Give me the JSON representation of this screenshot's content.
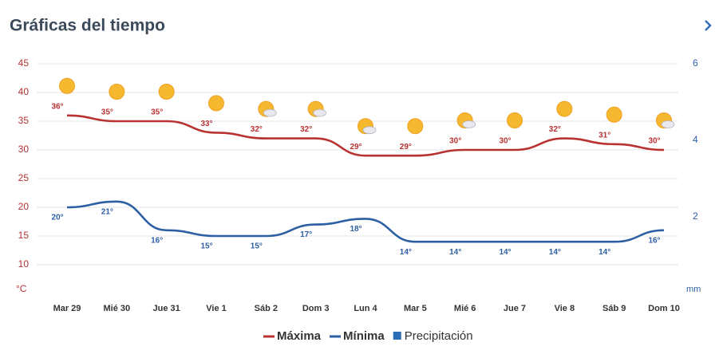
{
  "chart_data": {
    "type": "line",
    "title": "Gráficas del tiempo",
    "categories": [
      "Mar 29",
      "Mié 30",
      "Jue 31",
      "Vie 1",
      "Sáb 2",
      "Dom 3",
      "Lun 4",
      "Mar 5",
      "Mié 6",
      "Jue 7",
      "Vie 8",
      "Sáb 9",
      "Dom 10"
    ],
    "series": [
      {
        "name": "Máxima",
        "color": "#b83232",
        "values": [
          36,
          35,
          35,
          33,
          32,
          32,
          29,
          29,
          30,
          30,
          32,
          31,
          30
        ],
        "value_labels": [
          "36°",
          "35°",
          "35°",
          "33°",
          "32°",
          "32°",
          "29°",
          "29°",
          "30°",
          "30°",
          "32°",
          "31°",
          "30°"
        ]
      },
      {
        "name": "Mínima",
        "color": "#2d5fa4",
        "values": [
          20,
          21,
          16,
          15,
          15,
          17,
          18,
          14,
          14,
          14,
          14,
          14,
          16
        ],
        "value_labels": [
          "20°",
          "21°",
          "16°",
          "15°",
          "15°",
          "17°",
          "18°",
          "14°",
          "14°",
          "14°",
          "14°",
          "14°",
          "16°"
        ]
      },
      {
        "name": "Precipitación",
        "color": "#2d6db5",
        "axis": "y2",
        "values": [
          0,
          0,
          0,
          0,
          0,
          0,
          0,
          0,
          0,
          0,
          0,
          0,
          0
        ]
      }
    ],
    "y_label": "°C",
    "y2_label": "mm",
    "ylim": [
      5,
      45
    ],
    "yticks": [
      10,
      15,
      20,
      25,
      30,
      35,
      40,
      45
    ],
    "y2lim": [
      0,
      6
    ],
    "y2ticks": [
      2,
      4,
      6
    ],
    "grid": true
  }
}
